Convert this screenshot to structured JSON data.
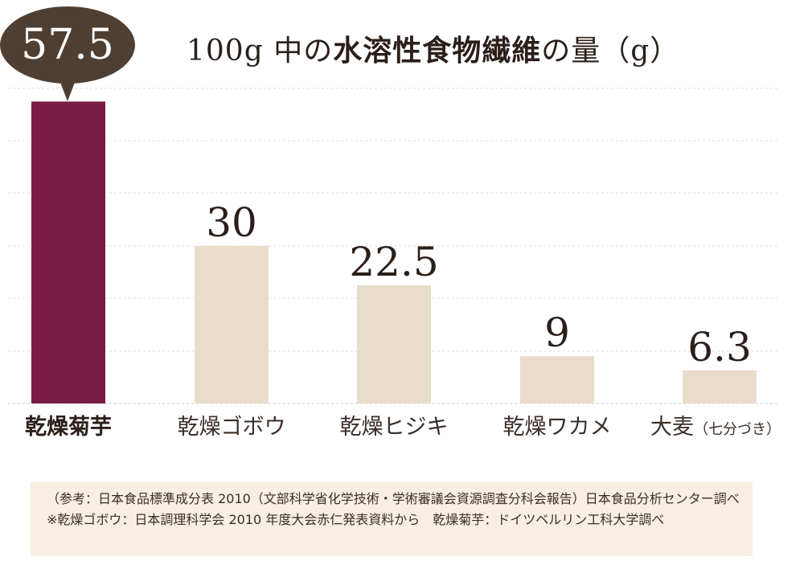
{
  "title": {
    "prefix": "100g 中の",
    "emphasis": "水溶性食物繊維",
    "suffix": "の量（g）"
  },
  "highlight": {
    "value_label": "57.5",
    "bubble_color": "#4f3f33"
  },
  "colors": {
    "highlight_bar": "#7a1c42",
    "other_bar": "#e8dccb",
    "gridline": "#dddddd",
    "baseline": "#cccccc",
    "note_bg": "#f7efe3"
  },
  "chart_data": {
    "type": "bar",
    "title": "100g 中の水溶性食物繊維の量（g）",
    "categories": [
      "乾燥菊芋",
      "乾燥ゴボウ",
      "乾燥ヒジキ",
      "乾燥ワカメ",
      "大麦"
    ],
    "category_suffixes": [
      "",
      "",
      "",
      "",
      "（七分づき）"
    ],
    "values": [
      57.5,
      30,
      22.5,
      9,
      6.3
    ],
    "value_labels": [
      "57.5",
      "30",
      "22.5",
      "9",
      "6.3"
    ],
    "highlight_index": 0,
    "ylim": [
      0,
      60
    ],
    "grid": true,
    "xlabel": "",
    "ylabel": ""
  },
  "note": {
    "text": "（参考：日本食品標準成分表 2010（文部科学省化学技術・学術審議会資源調査分科会報告）日本食品分析センター調べ　※乾燥ゴボウ：日本調理科学会 2010 年度大会赤仁発表資料から　乾燥菊芋：ドイツベルリン工科大学調べ"
  }
}
